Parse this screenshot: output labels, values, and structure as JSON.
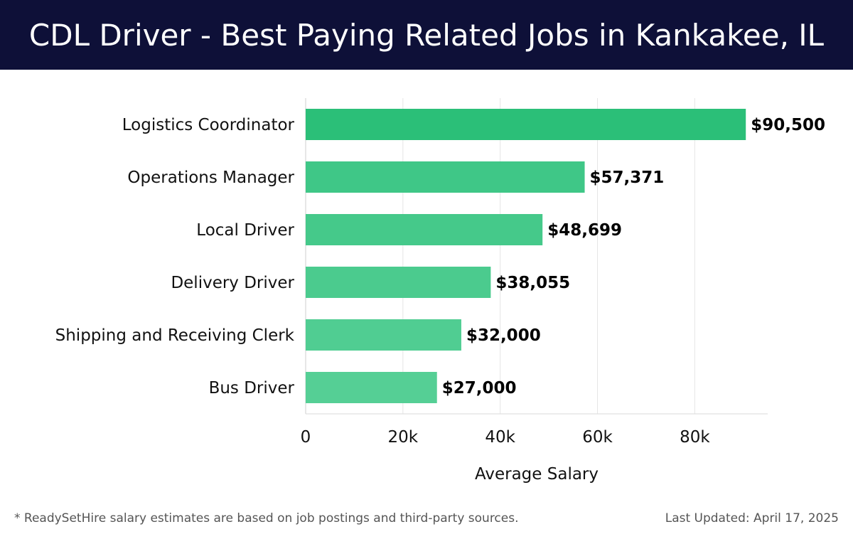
{
  "header": {
    "title": "CDL Driver - Best Paying Related Jobs in Kankakee, IL"
  },
  "chart_data": {
    "type": "bar",
    "orientation": "horizontal",
    "categories": [
      "Logistics Coordinator",
      "Operations Manager",
      "Local Driver",
      "Delivery Driver",
      "Shipping and Receiving Clerk",
      "Bus Driver"
    ],
    "values": [
      90500,
      57371,
      48699,
      38055,
      32000,
      27000
    ],
    "value_labels": [
      "$90,500",
      "$57,371",
      "$48,699",
      "$38,055",
      "$32,000",
      "$27,000"
    ],
    "xlabel": "Average Salary",
    "ylabel": "",
    "xlim": [
      0,
      95000
    ],
    "x_ticks": [
      0,
      20000,
      40000,
      60000,
      80000
    ],
    "x_tick_labels": [
      "0",
      "20k",
      "40k",
      "60k",
      "80k"
    ],
    "grid": true,
    "bar_colors": [
      "#2bbf78",
      "#3fc787",
      "#45c98a",
      "#4bcb8e",
      "#50cd92",
      "#55cf95"
    ]
  },
  "footer": {
    "note": "* ReadySetHire salary estimates are based on job postings and third-party sources.",
    "updated": "Last Updated: April 17, 2025"
  }
}
